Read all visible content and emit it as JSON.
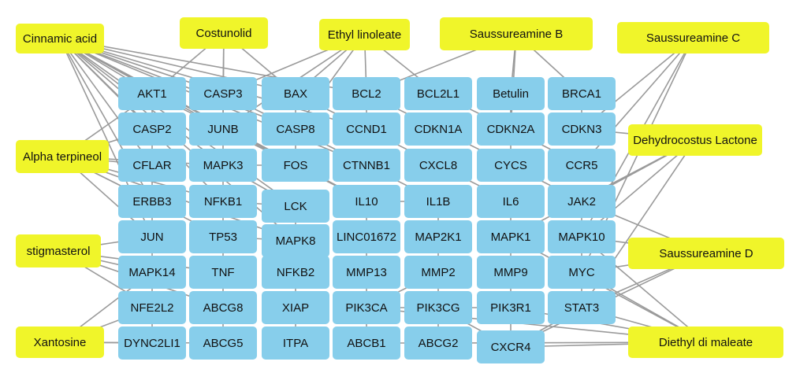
{
  "colors": {
    "compound_fill": "#f0f52a",
    "target_fill": "#87ceeb",
    "edge": "#9a9a9a",
    "text": "#111111"
  },
  "compounds": [
    {
      "id": "cinnamic-acid",
      "label": "Cinnamic acid"
    },
    {
      "id": "costunolid",
      "label": "Costunolid"
    },
    {
      "id": "ethyl-linoleate",
      "label": "Ethyl linoleate"
    },
    {
      "id": "saussureamine-b",
      "label": "Saussureamine B"
    },
    {
      "id": "saussureamine-c",
      "label": "Saussureamine C"
    },
    {
      "id": "alpha-terpineol",
      "label": "Alpha terpineol"
    },
    {
      "id": "dehydrocostus-lactone",
      "label": "Dehydrocostus Lactone"
    },
    {
      "id": "stigmasterol",
      "label": "stigmasterol"
    },
    {
      "id": "saussureamine-d",
      "label": "Saussureamine D"
    },
    {
      "id": "xantosine",
      "label": "Xantosine"
    },
    {
      "id": "diethyl-di-maleate",
      "label": "Diethyl di maleate"
    }
  ],
  "targets": [
    "AKT1",
    "CASP3",
    "BAX",
    "BCL2",
    "BCL2L1",
    "Betulin",
    "BRCA1",
    "CASP2",
    "JUNB",
    "CASP8",
    "CCND1",
    "CDKN1A",
    "CDKN2A",
    "CDKN3",
    "CFLAR",
    "MAPK3",
    "FOS",
    "CTNNB1",
    "CXCL8",
    "CYCS",
    "CCR5",
    "ERBB3",
    "NFKB1",
    "LCK",
    "IL10",
    "IL1B",
    "IL6",
    "JAK2",
    "JUN",
    "TP53",
    "MAPK8",
    "LINC01672",
    "MAP2K1",
    "MAPK1",
    "MAPK10",
    "MAPK14",
    "TNF",
    "NFKB2",
    "MMP13",
    "MMP2",
    "MMP9",
    "MYC",
    "NFE2L2",
    "ABCG8",
    "XIAP",
    "PIK3CA",
    "PIK3CG",
    "PIK3R1",
    "STAT3",
    "DYNC2LI1",
    "ABCG5",
    "ITPA",
    "ABCB1",
    "ABCG2",
    "CXCR4"
  ],
  "edges": [
    [
      "cinnamic-acid",
      "AKT1"
    ],
    [
      "cinnamic-acid",
      "CASP3"
    ],
    [
      "cinnamic-acid",
      "BAX"
    ],
    [
      "cinnamic-acid",
      "BCL2"
    ],
    [
      "cinnamic-acid",
      "CASP2"
    ],
    [
      "cinnamic-acid",
      "JUNB"
    ],
    [
      "cinnamic-acid",
      "CASP8"
    ],
    [
      "cinnamic-acid",
      "CCND1"
    ],
    [
      "cinnamic-acid",
      "CFLAR"
    ],
    [
      "cinnamic-acid",
      "MAPK3"
    ],
    [
      "cinnamic-acid",
      "FOS"
    ],
    [
      "cinnamic-acid",
      "ERBB3"
    ],
    [
      "cinnamic-acid",
      "NFKB1"
    ],
    [
      "cinnamic-acid",
      "LCK"
    ],
    [
      "cinnamic-acid",
      "JUN"
    ],
    [
      "cinnamic-acid",
      "MAPK8"
    ],
    [
      "cinnamic-acid",
      "CTNNB1"
    ],
    [
      "cinnamic-acid",
      "IL10"
    ],
    [
      "costunolid",
      "AKT1"
    ],
    [
      "costunolid",
      "CASP3"
    ],
    [
      "costunolid",
      "BAX"
    ],
    [
      "costunolid",
      "JUNB"
    ],
    [
      "ethyl-linoleate",
      "CASP3"
    ],
    [
      "ethyl-linoleate",
      "BAX"
    ],
    [
      "ethyl-linoleate",
      "BCL2"
    ],
    [
      "ethyl-linoleate",
      "JUNB"
    ],
    [
      "ethyl-linoleate",
      "CASP8"
    ],
    [
      "ethyl-linoleate",
      "BCL2L1"
    ],
    [
      "saussureamine-b",
      "Betulin"
    ],
    [
      "saussureamine-b",
      "BCL2"
    ],
    [
      "saussureamine-b",
      "CDKN2A"
    ],
    [
      "saussureamine-b",
      "BRCA1"
    ],
    [
      "saussureamine-c",
      "CCR5"
    ],
    [
      "saussureamine-c",
      "MAPK10"
    ],
    [
      "saussureamine-c",
      "MYC"
    ],
    [
      "saussureamine-c",
      "CDKN3"
    ],
    [
      "alpha-terpineol",
      "CASP2"
    ],
    [
      "alpha-terpineol",
      "CFLAR"
    ],
    [
      "alpha-terpineol",
      "ERBB3"
    ],
    [
      "alpha-terpineol",
      "MAPK3"
    ],
    [
      "alpha-terpineol",
      "JUN"
    ],
    [
      "alpha-terpineol",
      "NFKB1"
    ],
    [
      "alpha-terpineol",
      "TP53"
    ],
    [
      "alpha-terpineol",
      "AKT1"
    ],
    [
      "alpha-terpineol",
      "MAPK8"
    ],
    [
      "dehydrocostus-lactone",
      "CDKN3"
    ],
    [
      "dehydrocostus-lactone",
      "JAK2"
    ],
    [
      "dehydrocostus-lactone",
      "MAPK1"
    ],
    [
      "dehydrocostus-lactone",
      "STAT3"
    ],
    [
      "dehydrocostus-lactone",
      "MAPK10"
    ],
    [
      "stigmasterol",
      "MAPK14"
    ],
    [
      "stigmasterol",
      "TNF"
    ],
    [
      "stigmasterol",
      "NFE2L2"
    ],
    [
      "stigmasterol",
      "JUN"
    ],
    [
      "stigmasterol",
      "ABCG8"
    ],
    [
      "saussureamine-d",
      "JAK2"
    ],
    [
      "saussureamine-d",
      "MAPK10"
    ],
    [
      "saussureamine-d",
      "STAT3"
    ],
    [
      "saussureamine-d",
      "MYC"
    ],
    [
      "saussureamine-d",
      "CXCR4"
    ],
    [
      "xantosine",
      "DYNC2LI1"
    ],
    [
      "xantosine",
      "NFE2L2"
    ],
    [
      "xantosine",
      "ABCG5"
    ],
    [
      "xantosine",
      "MAPK14"
    ],
    [
      "diethyl-di-maleate",
      "CXCR4"
    ],
    [
      "diethyl-di-maleate",
      "MYC"
    ],
    [
      "diethyl-di-maleate",
      "STAT3"
    ],
    [
      "diethyl-di-maleate",
      "MAPK10"
    ],
    [
      "diethyl-di-maleate",
      "PIK3R1"
    ],
    [
      "diethyl-di-maleate",
      "PIK3CA"
    ],
    [
      "diethyl-di-maleate",
      "ABCG2"
    ],
    [
      "diethyl-di-maleate",
      "MAPK1"
    ],
    [
      "AKT1",
      "CASP2"
    ],
    [
      "AKT1",
      "JUNB"
    ],
    [
      "CASP3",
      "JUNB"
    ],
    [
      "CASP3",
      "CASP8"
    ],
    [
      "BAX",
      "CASP8"
    ],
    [
      "BAX",
      "CCND1"
    ],
    [
      "BCL2",
      "CCND1"
    ],
    [
      "BCL2",
      "CDKN1A"
    ],
    [
      "BCL2L1",
      "CDKN2A"
    ],
    [
      "Betulin",
      "CDKN2A"
    ],
    [
      "Betulin",
      "CYCS"
    ],
    [
      "BRCA1",
      "CDKN3"
    ],
    [
      "CASP2",
      "CFLAR"
    ],
    [
      "JUNB",
      "MAPK3"
    ],
    [
      "JUNB",
      "FOS"
    ],
    [
      "CASP8",
      "FOS"
    ],
    [
      "CASP8",
      "CTNNB1"
    ],
    [
      "CCND1",
      "CXCL8"
    ],
    [
      "CDKN1A",
      "CYCS"
    ],
    [
      "CDKN2A",
      "CCR5"
    ],
    [
      "CFLAR",
      "ERBB3"
    ],
    [
      "MAPK3",
      "NFKB1"
    ],
    [
      "MAPK3",
      "LCK"
    ],
    [
      "FOS",
      "IL10"
    ],
    [
      "CTNNB1",
      "IL1B"
    ],
    [
      "CXCL8",
      "IL6"
    ],
    [
      "CYCS",
      "JAK2"
    ],
    [
      "ERBB3",
      "JUN"
    ],
    [
      "NFKB1",
      "TP53"
    ],
    [
      "LCK",
      "MAPK8"
    ],
    [
      "IL10",
      "LINC01672"
    ],
    [
      "IL1B",
      "MAP2K1"
    ],
    [
      "IL6",
      "MAPK1"
    ],
    [
      "JAK2",
      "MAPK10"
    ],
    [
      "JUN",
      "MAPK14"
    ],
    [
      "TP53",
      "TNF"
    ],
    [
      "MAPK8",
      "NFKB2"
    ],
    [
      "LINC01672",
      "MMP13"
    ],
    [
      "MAP2K1",
      "MMP2"
    ],
    [
      "MAPK1",
      "MMP9"
    ],
    [
      "MAPK10",
      "MYC"
    ],
    [
      "MAPK14",
      "NFE2L2"
    ],
    [
      "TNF",
      "ABCG8"
    ],
    [
      "NFKB2",
      "XIAP"
    ],
    [
      "MMP13",
      "PIK3CA"
    ],
    [
      "MMP2",
      "PIK3CG"
    ],
    [
      "MMP9",
      "PIK3R1"
    ],
    [
      "MYC",
      "STAT3"
    ],
    [
      "NFE2L2",
      "DYNC2LI1"
    ],
    [
      "ABCG8",
      "ABCG5"
    ],
    [
      "XIAP",
      "ITPA"
    ],
    [
      "PIK3CA",
      "ABCB1"
    ],
    [
      "PIK3CG",
      "ABCG2"
    ],
    [
      "PIK3R1",
      "CXCR4"
    ],
    [
      "STAT3",
      "CXCR4"
    ],
    [
      "TP53",
      "MAPK8"
    ],
    [
      "NFKB1",
      "LCK"
    ],
    [
      "IL10",
      "IL1B"
    ],
    [
      "MAPK3",
      "FOS"
    ],
    [
      "PIK3CA",
      "PIK3R1"
    ],
    [
      "PIK3CG",
      "CXCR4"
    ],
    [
      "ABCB1",
      "ABCG2"
    ],
    [
      "MMP2",
      "PIK3CA"
    ]
  ]
}
